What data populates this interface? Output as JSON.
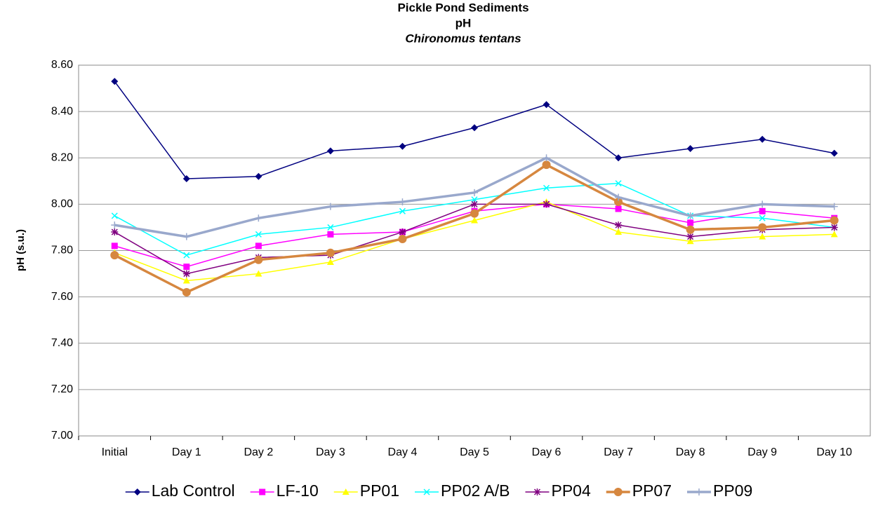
{
  "chart_data": {
    "type": "line",
    "title": [
      "Pickle Pond Sediments",
      "pH",
      "Chironomus tentans"
    ],
    "y_label": "pH (s.u.)",
    "categories": [
      "Initial",
      "Day 1",
      "Day 2",
      "Day 3",
      "Day 4",
      "Day 5",
      "Day 6",
      "Day 7",
      "Day 8",
      "Day 9",
      "Day 10"
    ],
    "ylim": [
      7.0,
      8.6
    ],
    "yticks": [
      {
        "value": 7.0,
        "label": "7.00"
      },
      {
        "value": 7.2,
        "label": "7.20"
      },
      {
        "value": 7.4,
        "label": "7.40"
      },
      {
        "value": 7.6,
        "label": "7.60"
      },
      {
        "value": 7.8,
        "label": "7.80"
      },
      {
        "value": 8.0,
        "label": "8.00"
      },
      {
        "value": 8.2,
        "label": "8.20"
      },
      {
        "value": 8.4,
        "label": "8.40"
      },
      {
        "value": 8.6,
        "label": "8.60"
      }
    ],
    "grid": true,
    "legend": "bottom",
    "series": [
      {
        "name": "Lab Control",
        "color": "#000080",
        "marker": "diamond",
        "line_width": 1.5,
        "values": [
          8.53,
          8.11,
          8.12,
          8.23,
          8.25,
          8.33,
          8.43,
          8.2,
          8.24,
          8.28,
          8.22
        ]
      },
      {
        "name": "LF-10",
        "color": "#ff00ff",
        "marker": "square",
        "line_width": 1.5,
        "values": [
          7.82,
          7.73,
          7.82,
          7.87,
          7.88,
          7.97,
          8.0,
          7.98,
          7.92,
          7.97,
          7.94
        ]
      },
      {
        "name": "PP01",
        "color": "#ffff00",
        "marker": "triangle",
        "line_width": 1.5,
        "values": [
          7.79,
          7.67,
          7.7,
          7.75,
          7.85,
          7.93,
          8.01,
          7.88,
          7.84,
          7.86,
          7.87
        ]
      },
      {
        "name": "PP02 A/B",
        "color": "#00ffff",
        "marker": "x",
        "line_width": 1.5,
        "values": [
          7.95,
          7.78,
          7.87,
          7.9,
          7.97,
          8.02,
          8.07,
          8.09,
          7.95,
          7.94,
          7.9
        ]
      },
      {
        "name": "PP04",
        "color": "#800080",
        "marker": "asterisk",
        "line_width": 1.5,
        "values": [
          7.88,
          7.7,
          7.77,
          7.78,
          7.88,
          8.0,
          8.0,
          7.91,
          7.86,
          7.89,
          7.9
        ]
      },
      {
        "name": "PP07",
        "color": "#d6873f",
        "marker": "circle",
        "line_width": 3.5,
        "values": [
          7.78,
          7.62,
          7.76,
          7.79,
          7.85,
          7.96,
          8.17,
          8.01,
          7.89,
          7.9,
          7.93
        ]
      },
      {
        "name": "PP09",
        "color": "#99a8cc",
        "marker": "plus",
        "line_width": 3.5,
        "values": [
          7.91,
          7.86,
          7.94,
          7.99,
          8.01,
          8.05,
          8.2,
          8.03,
          7.95,
          8.0,
          7.99
        ]
      }
    ]
  }
}
